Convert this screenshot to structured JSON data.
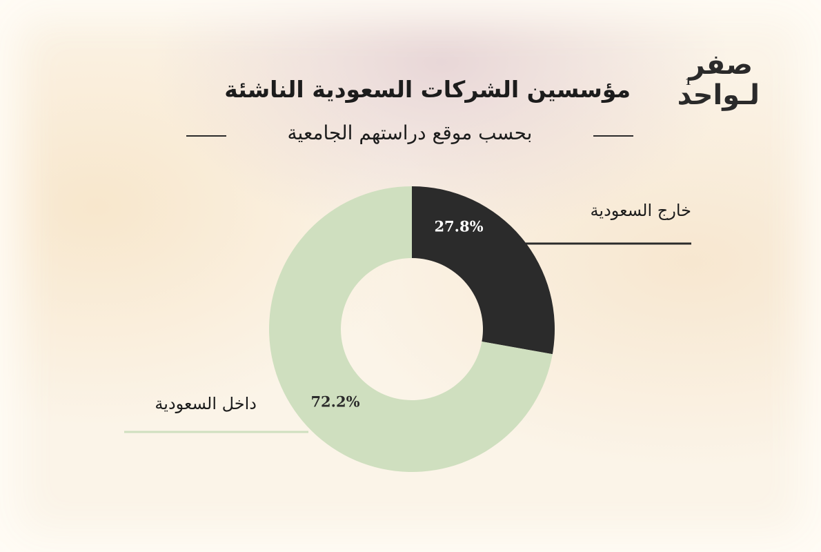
{
  "logo": {
    "line1": "صفر",
    "line2": "لـواحد",
    "number": "1"
  },
  "chart_data": {
    "type": "pie",
    "title": "مؤسسين الشركات السعودية الناشئة",
    "subtitle": "بحسب موقع دراستهم الجامعية",
    "categories": [
      "خارج السعودية",
      "داخل السعودية"
    ],
    "values": [
      27.8,
      72.2
    ],
    "value_labels": [
      "27.8%",
      "72.2%"
    ],
    "colors": [
      "#2b2b2b",
      "#cfdfbf"
    ],
    "label_colors": [
      "#ffffff",
      "#2b2b2b"
    ],
    "donut": true
  }
}
